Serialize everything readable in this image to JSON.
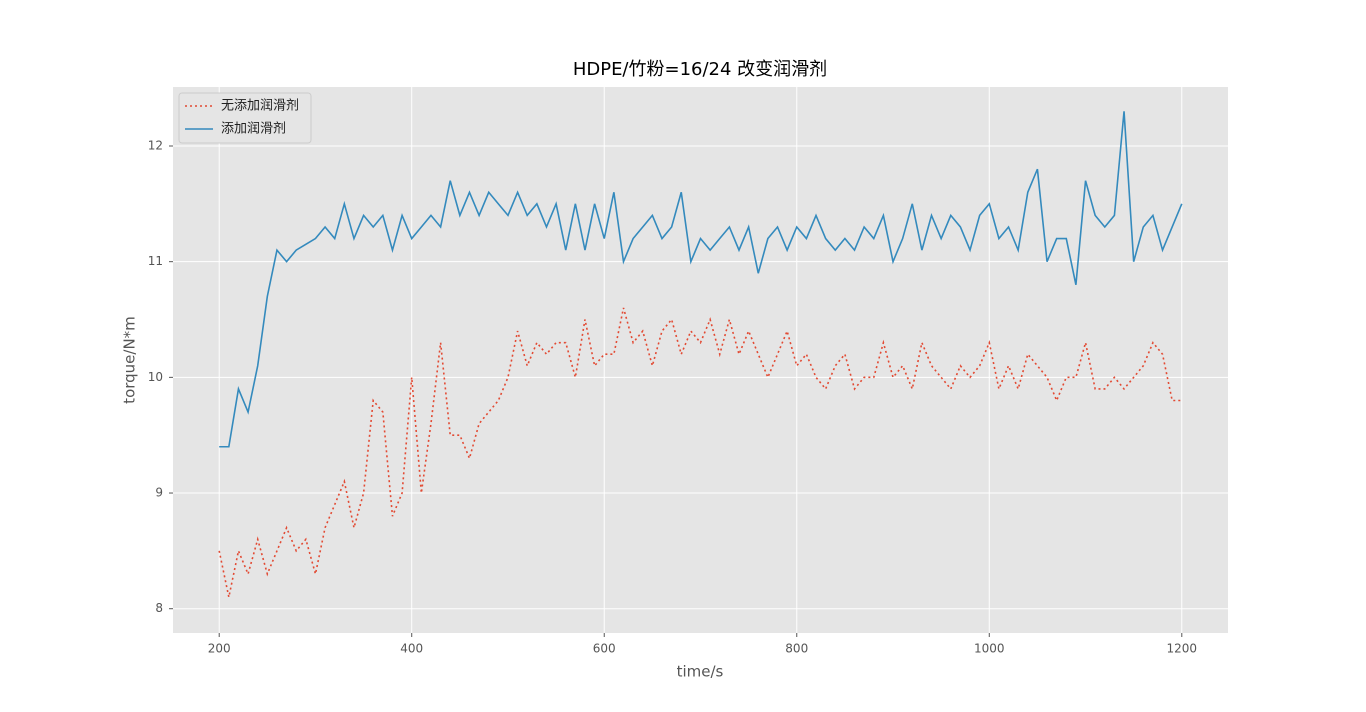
{
  "chart_data": {
    "type": "line",
    "title": "HDPE/竹粉=16/24 改变润滑剂",
    "xlabel": "time/s",
    "ylabel": "torque/N*m",
    "x": [
      200,
      210,
      220,
      230,
      240,
      250,
      260,
      270,
      280,
      290,
      300,
      310,
      320,
      330,
      340,
      350,
      360,
      370,
      380,
      390,
      400,
      410,
      420,
      430,
      440,
      450,
      460,
      470,
      480,
      490,
      500,
      510,
      520,
      530,
      540,
      550,
      560,
      570,
      580,
      590,
      600,
      610,
      620,
      630,
      640,
      650,
      660,
      670,
      680,
      690,
      700,
      710,
      720,
      730,
      740,
      750,
      760,
      770,
      780,
      790,
      800,
      810,
      820,
      830,
      840,
      850,
      860,
      870,
      880,
      890,
      900,
      910,
      920,
      930,
      940,
      950,
      960,
      970,
      980,
      990,
      1000,
      1010,
      1020,
      1030,
      1040,
      1050,
      1060,
      1070,
      1080,
      1090,
      1100,
      1110,
      1120,
      1130,
      1140,
      1150,
      1160,
      1170,
      1180,
      1190,
      1200
    ],
    "series": [
      {
        "name": "无添加润滑剂",
        "color": "#e24a33",
        "linestyle": "dotted",
        "values": [
          8.5,
          8.1,
          8.5,
          8.3,
          8.6,
          8.3,
          8.5,
          8.7,
          8.5,
          8.6,
          8.3,
          8.7,
          8.9,
          9.1,
          8.7,
          9.0,
          9.8,
          9.7,
          8.8,
          9.0,
          10.0,
          9.0,
          9.6,
          10.3,
          9.5,
          9.5,
          9.3,
          9.6,
          9.7,
          9.8,
          10.0,
          10.4,
          10.1,
          10.3,
          10.2,
          10.3,
          10.3,
          10.0,
          10.5,
          10.1,
          10.2,
          10.2,
          10.6,
          10.3,
          10.4,
          10.1,
          10.4,
          10.5,
          10.2,
          10.4,
          10.3,
          10.5,
          10.2,
          10.5,
          10.2,
          10.4,
          10.2,
          10.0,
          10.2,
          10.4,
          10.1,
          10.2,
          10.0,
          9.9,
          10.1,
          10.2,
          9.9,
          10.0,
          10.0,
          10.3,
          10.0,
          10.1,
          9.9,
          10.3,
          10.1,
          10.0,
          9.9,
          10.1,
          10.0,
          10.1,
          10.3,
          9.9,
          10.1,
          9.9,
          10.2,
          10.1,
          10.0,
          9.8,
          10.0,
          10.0,
          10.3,
          9.9,
          9.9,
          10.0,
          9.9,
          10.0,
          10.1,
          10.3,
          10.2,
          9.8,
          9.8
        ]
      },
      {
        "name": "添加润滑剂",
        "color": "#348abd",
        "linestyle": "solid",
        "values": [
          9.4,
          9.4,
          9.9,
          9.7,
          10.1,
          10.7,
          11.1,
          11.0,
          11.1,
          11.15,
          11.2,
          11.3,
          11.2,
          11.5,
          11.2,
          11.4,
          11.3,
          11.4,
          11.1,
          11.4,
          11.2,
          11.3,
          11.4,
          11.3,
          11.7,
          11.4,
          11.6,
          11.4,
          11.6,
          11.5,
          11.4,
          11.6,
          11.4,
          11.5,
          11.3,
          11.5,
          11.1,
          11.5,
          11.1,
          11.5,
          11.2,
          11.6,
          11.0,
          11.2,
          11.3,
          11.4,
          11.2,
          11.3,
          11.6,
          11.0,
          11.2,
          11.1,
          11.2,
          11.3,
          11.1,
          11.3,
          10.9,
          11.2,
          11.3,
          11.1,
          11.3,
          11.2,
          11.4,
          11.2,
          11.1,
          11.2,
          11.1,
          11.3,
          11.2,
          11.4,
          11.0,
          11.2,
          11.5,
          11.1,
          11.4,
          11.2,
          11.4,
          11.3,
          11.1,
          11.4,
          11.5,
          11.2,
          11.3,
          11.1,
          11.6,
          11.8,
          11.0,
          11.2,
          11.2,
          10.8,
          11.7,
          11.4,
          11.3,
          11.4,
          12.3,
          11.0,
          11.3,
          11.4,
          11.1,
          11.3,
          11.5
        ]
      }
    ],
    "xlim": [
      152,
      1248
    ],
    "xticks": [
      200,
      400,
      600,
      800,
      1000,
      1200
    ],
    "ylim": [
      7.79,
      12.51
    ],
    "yticks": [
      8,
      9,
      10,
      11,
      12
    ],
    "grid": true,
    "legend": "upper-left"
  }
}
